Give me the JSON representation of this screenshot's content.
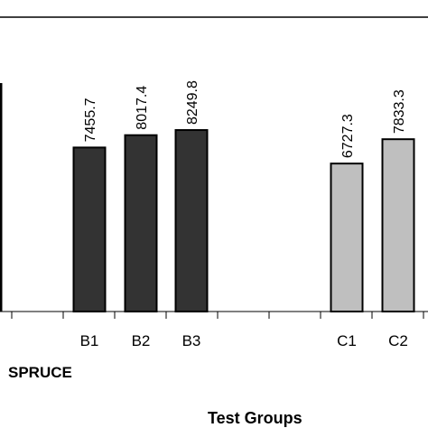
{
  "chart_data": {
    "type": "bar",
    "categories": [
      "B1",
      "B2",
      "B3",
      "C1",
      "C2"
    ],
    "values": [
      7455.7,
      8017.4,
      8249.8,
      6727.3,
      7833.3
    ],
    "value_labels": [
      "7455.7",
      "8017.4",
      "8249.8",
      "6727.3",
      "7833.3"
    ],
    "bar_colors": [
      "#333333",
      "#333333",
      "#333333",
      "#bfbfbf",
      "#bfbfbf"
    ],
    "group_label": "SPRUCE",
    "xlabel": "Test Groups",
    "grid": false
  }
}
